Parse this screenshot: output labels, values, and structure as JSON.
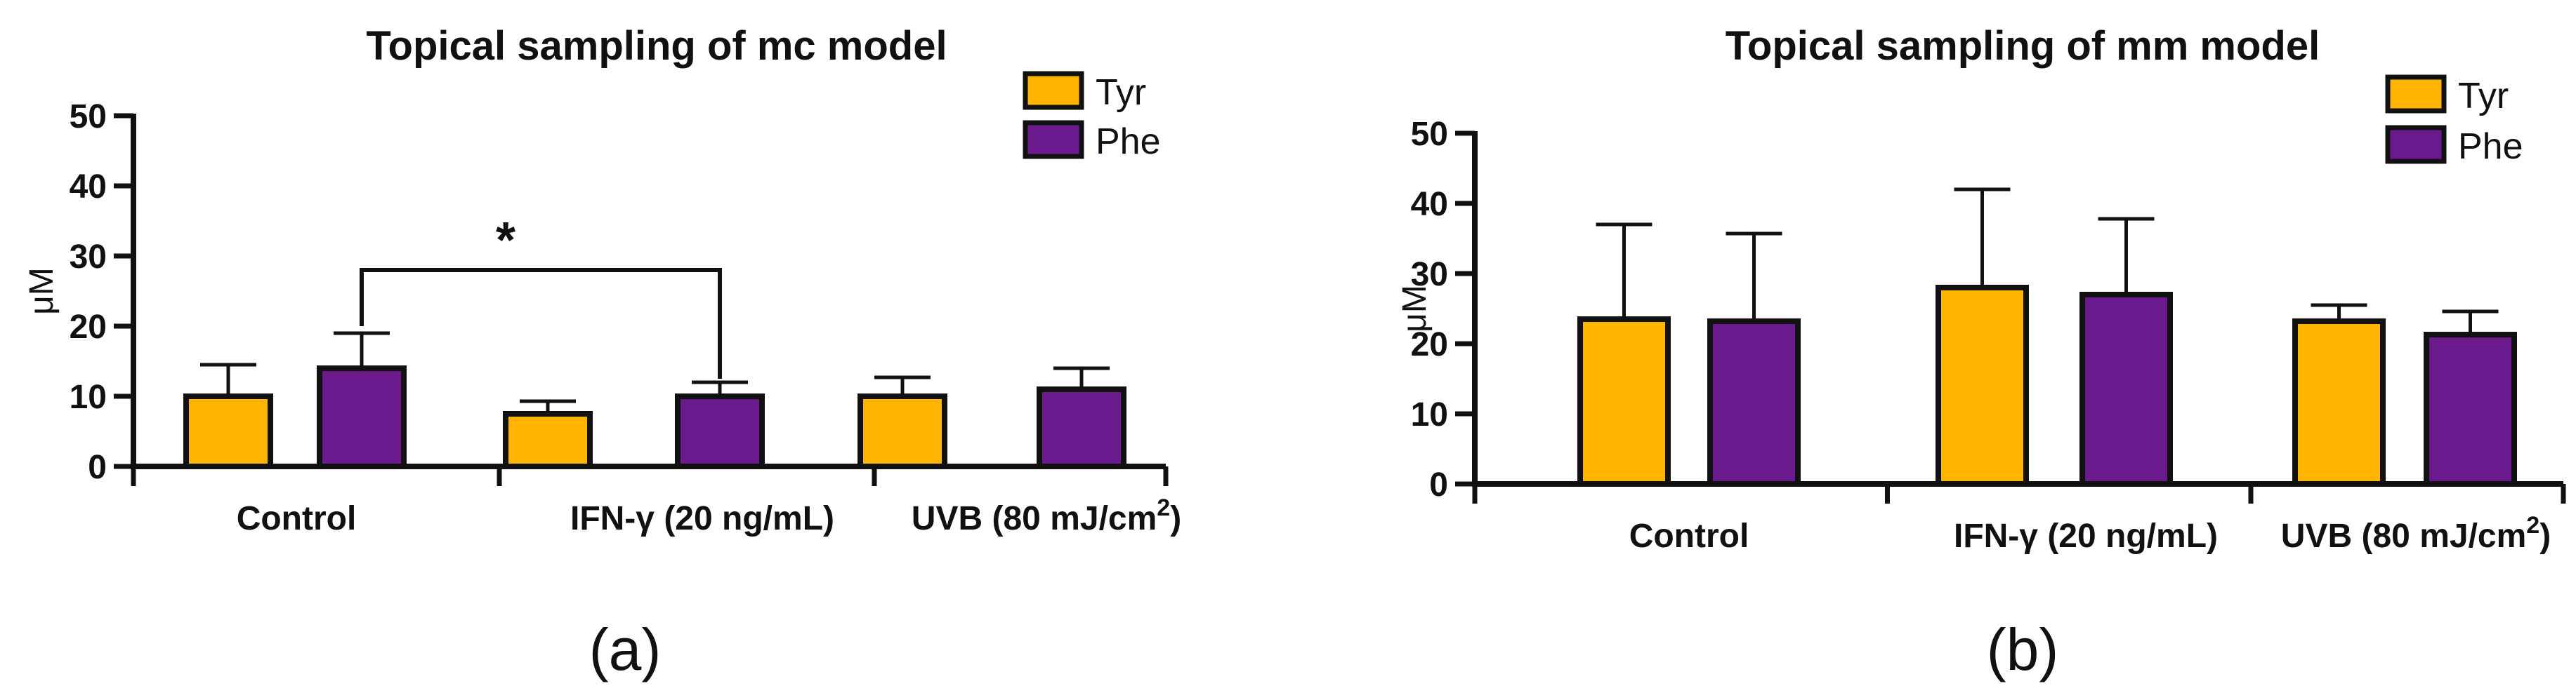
{
  "colors": {
    "tyr": "#FFB400",
    "phe": "#6B1A8E",
    "axis": "#111111"
  },
  "chart_data": [
    {
      "type": "bar",
      "title": "Topical sampling of mc model",
      "panel_label": "(a)",
      "xlabel": "",
      "ylabel": "μM",
      "ylim": [
        0,
        50
      ],
      "yticks": [
        "0",
        "10",
        "20",
        "30",
        "40",
        "50"
      ],
      "categories": [
        {
          "main": "Control",
          "sup": ""
        },
        {
          "main": "IFN-γ (20 ng/mL)",
          "sup": ""
        },
        {
          "main": "UVB (80 mJ/cm",
          "sup": "2",
          "tail": ")"
        }
      ],
      "series": [
        {
          "name": "Tyr",
          "values": [
            10,
            7.5,
            10
          ],
          "errors": [
            4.5,
            1.8,
            2.7
          ]
        },
        {
          "name": "Phe",
          "values": [
            14,
            10,
            11
          ],
          "errors": [
            5,
            2,
            3
          ]
        }
      ],
      "significance": {
        "label": "*",
        "from": "Control Phe",
        "to": "IFN-γ (20 ng/mL) Phe",
        "level": 28
      }
    },
    {
      "type": "bar",
      "title": "Topical sampling of mm model",
      "panel_label": "(b)",
      "xlabel": "",
      "ylabel": "μM",
      "ylim": [
        0,
        50
      ],
      "yticks": [
        "0",
        "10",
        "20",
        "30",
        "40",
        "50"
      ],
      "categories": [
        {
          "main": "Control",
          "sup": ""
        },
        {
          "main": "IFN-γ (20 ng/mL)",
          "sup": ""
        },
        {
          "main": "UVB (80 mJ/cm",
          "sup": "2",
          "tail": ")"
        }
      ],
      "series": [
        {
          "name": "Tyr",
          "values": [
            23.5,
            28,
            23.2
          ],
          "errors": [
            13.5,
            14,
            2.3
          ]
        },
        {
          "name": "Phe",
          "values": [
            23.2,
            27,
            21.3
          ],
          "errors": [
            12.5,
            10.8,
            3.3
          ]
        }
      ],
      "significance": null
    }
  ]
}
